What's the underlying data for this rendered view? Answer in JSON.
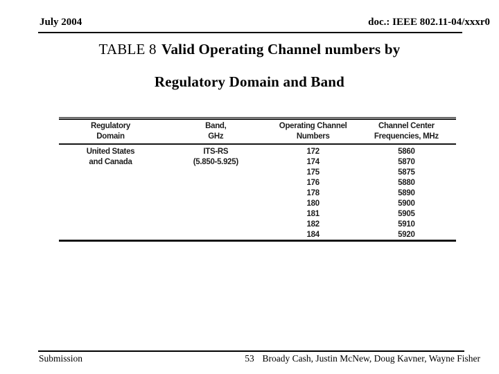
{
  "slide": {
    "header": {
      "date": "July 2004",
      "doc_number": "doc.: IEEE 802.11-04/xxxr0"
    },
    "title": {
      "prefix": "TABLE 8",
      "line1_bold": "Valid Operating Channel numbers by",
      "line2": "Regulatory Domain and Band"
    },
    "table": {
      "columns": [
        {
          "line1": "Regulatory",
          "line2": "Domain"
        },
        {
          "line1": "Band,",
          "line2": "GHz"
        },
        {
          "line1": "Operating Channel",
          "line2": "Numbers"
        },
        {
          "line1": "Channel Center",
          "line2": "Frequencies, MHz"
        }
      ],
      "rows": [
        [
          "United States",
          "ITS-RS",
          "172",
          "5860"
        ],
        [
          "and Canada",
          "(5.850-5.925)",
          "174",
          "5870"
        ],
        [
          "",
          "",
          "175",
          "5875"
        ],
        [
          "",
          "",
          "176",
          "5880"
        ],
        [
          "",
          "",
          "178",
          "5890"
        ],
        [
          "",
          "",
          "180",
          "5900"
        ],
        [
          "",
          "",
          "181",
          "5905"
        ],
        [
          "",
          "",
          "182",
          "5910"
        ],
        [
          "",
          "",
          "184",
          "5920"
        ]
      ]
    },
    "footer": {
      "left": "Submission",
      "page_number": "53",
      "authors": "Broady Cash, Justin McNew, Doug Kavner, Wayne Fisher"
    },
    "colors": {
      "text": "#000000",
      "rule": "#000000",
      "table_text": "#1d1d1d"
    }
  }
}
